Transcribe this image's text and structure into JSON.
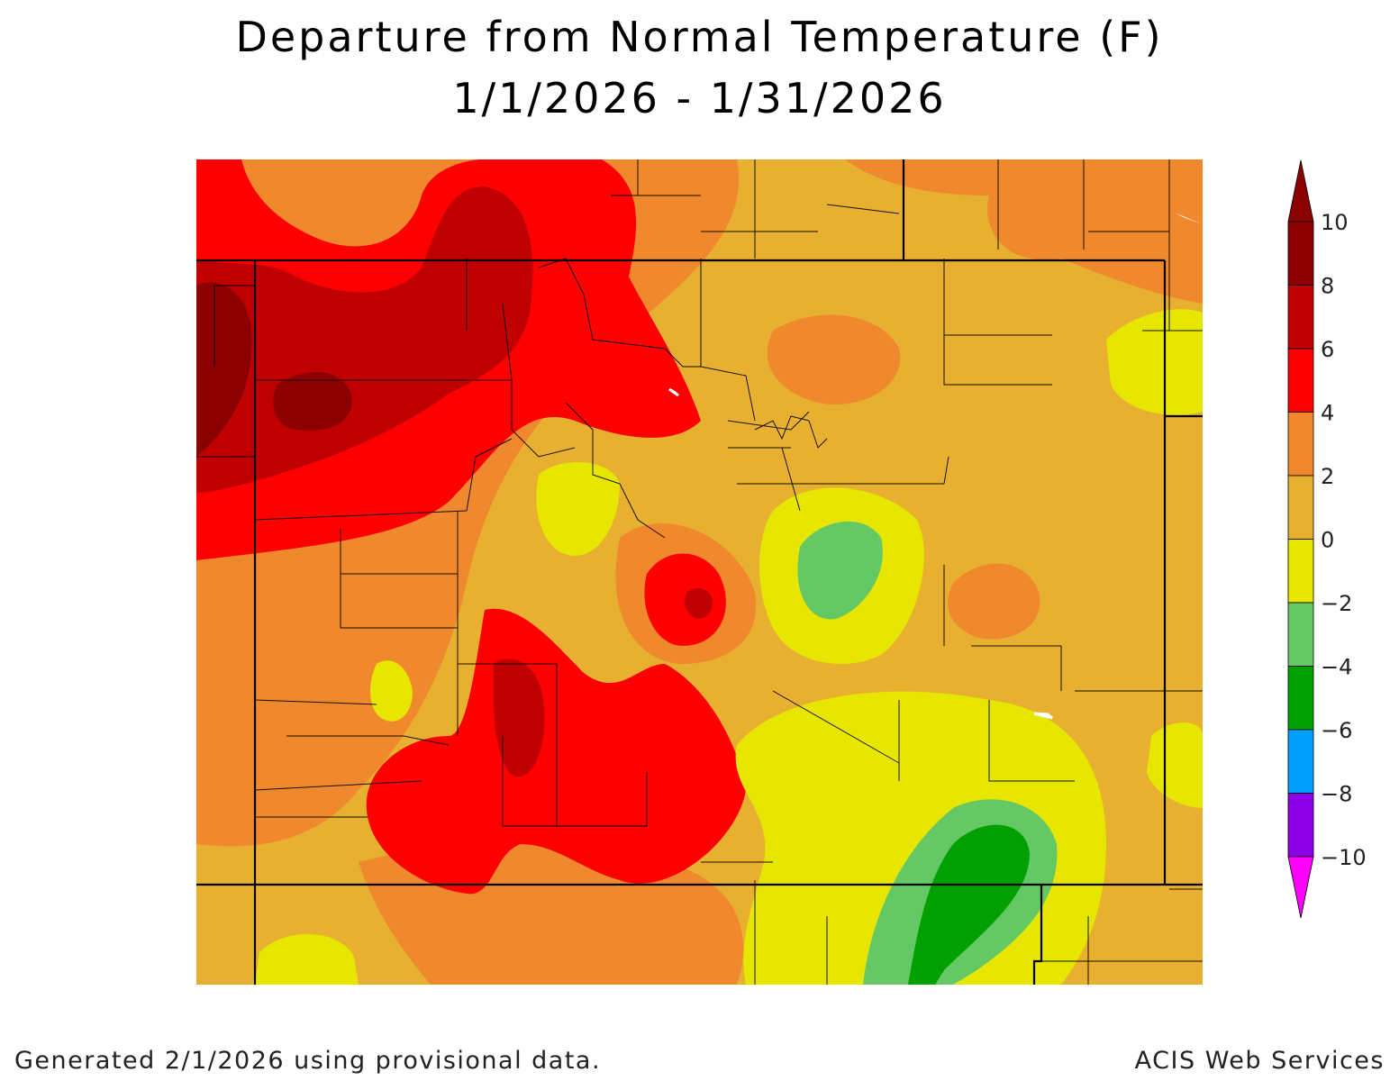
{
  "title": "Departure from Normal Temperature (F)",
  "subtitle": "1/1/2026 - 1/31/2026",
  "legend": {
    "levels": [
      {
        "label": "10",
        "color": "#8b0000"
      },
      {
        "label": "8",
        "color": "#c00000"
      },
      {
        "label": "6",
        "color": "#ff0000"
      },
      {
        "label": "4",
        "color": "#f0882d"
      },
      {
        "label": "2",
        "color": "#e8b030"
      },
      {
        "label": "0",
        "color": "#e6e600"
      },
      {
        "label": "−2",
        "color": "#64c864"
      },
      {
        "label": "−4",
        "color": "#00a000"
      },
      {
        "label": "−6",
        "color": "#00a0ff"
      },
      {
        "label": "−8",
        "color": "#8c00e6"
      },
      {
        "label": "−10",
        "color": "#a000c8"
      }
    ],
    "bottom_color": "#ff00ff",
    "top_color": "#8b0000"
  },
  "footer_left": "Generated 2/1/2026 using provisional data.",
  "footer_right": "ACIS Web Services"
}
